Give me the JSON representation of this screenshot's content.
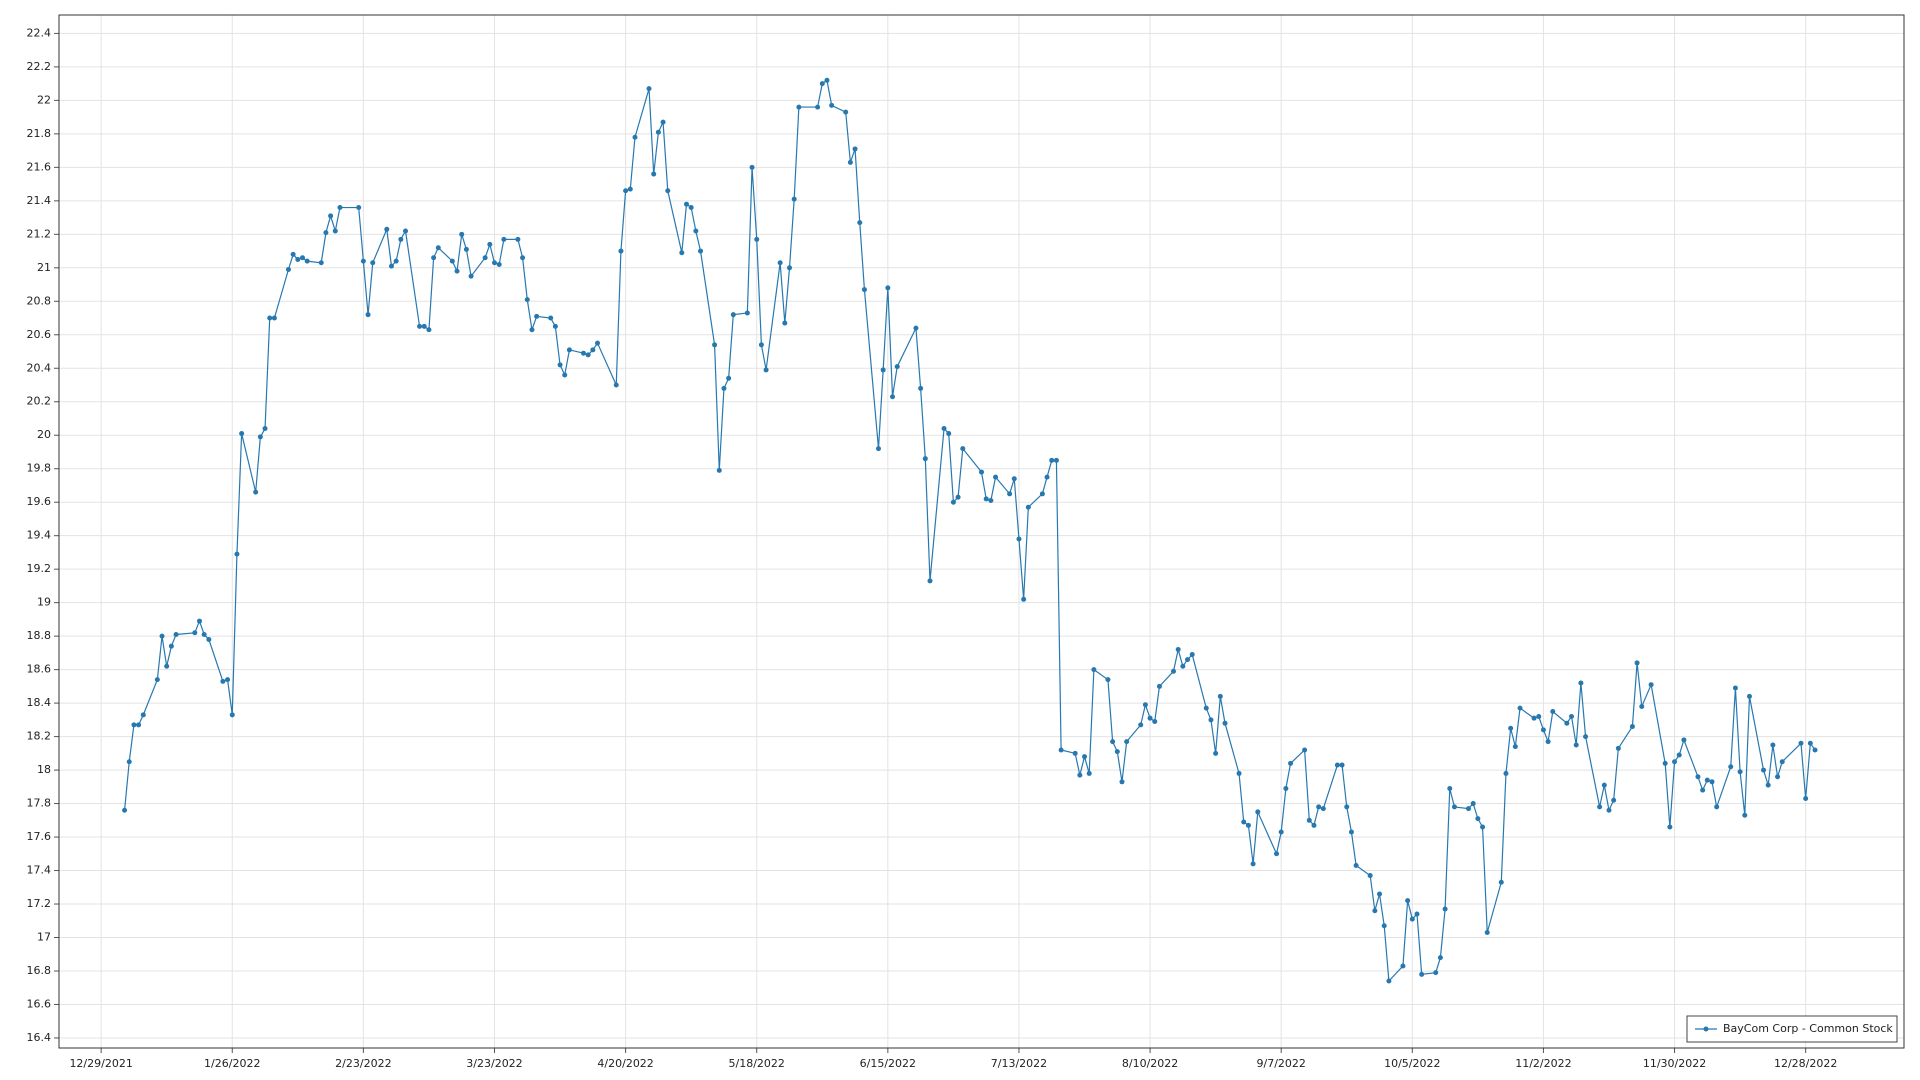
{
  "chart_data": {
    "type": "line",
    "xlim": [
      "2021-12-20",
      "2023-01-18"
    ],
    "xticks": [
      {
        "value": "2021-12-29",
        "label": "12/29/2021"
      },
      {
        "value": "2022-01-26",
        "label": "1/26/2022"
      },
      {
        "value": "2022-02-23",
        "label": "2/23/2022"
      },
      {
        "value": "2022-03-23",
        "label": "3/23/2022"
      },
      {
        "value": "2022-04-20",
        "label": "4/20/2022"
      },
      {
        "value": "2022-05-18",
        "label": "5/18/2022"
      },
      {
        "value": "2022-06-15",
        "label": "6/15/2022"
      },
      {
        "value": "2022-07-13",
        "label": "7/13/2022"
      },
      {
        "value": "2022-08-10",
        "label": "8/10/2022"
      },
      {
        "value": "2022-09-07",
        "label": "9/7/2022"
      },
      {
        "value": "2022-10-05",
        "label": "10/5/2022"
      },
      {
        "value": "2022-11-02",
        "label": "11/2/2022"
      },
      {
        "value": "2022-11-30",
        "label": "11/30/2022"
      },
      {
        "value": "2022-12-28",
        "label": "12/28/2022"
      }
    ],
    "ylim": [
      16.34,
      22.51
    ],
    "yticks": [
      16.4,
      16.6,
      16.8,
      17,
      17.2,
      17.4,
      17.6,
      17.8,
      18,
      18.2,
      18.4,
      18.6,
      18.8,
      19,
      19.2,
      19.4,
      19.6,
      19.8,
      20,
      20.2,
      20.4,
      20.6,
      20.8,
      21,
      21.2,
      21.4,
      21.6,
      21.8,
      22,
      22.2,
      22.4
    ],
    "grid": true,
    "legend": "lower right",
    "x": [
      "2022-01-03",
      "2022-01-04",
      "2022-01-05",
      "2022-01-06",
      "2022-01-07",
      "2022-01-10",
      "2022-01-11",
      "2022-01-12",
      "2022-01-13",
      "2022-01-14",
      "2022-01-18",
      "2022-01-19",
      "2022-01-20",
      "2022-01-21",
      "2022-01-24",
      "2022-01-25",
      "2022-01-26",
      "2022-01-27",
      "2022-01-28",
      "2022-01-31",
      "2022-02-01",
      "2022-02-02",
      "2022-02-03",
      "2022-02-04",
      "2022-02-07",
      "2022-02-08",
      "2022-02-09",
      "2022-02-10",
      "2022-02-11",
      "2022-02-14",
      "2022-02-15",
      "2022-02-16",
      "2022-02-17",
      "2022-02-18",
      "2022-02-22",
      "2022-02-23",
      "2022-02-24",
      "2022-02-25",
      "2022-02-28",
      "2022-03-01",
      "2022-03-02",
      "2022-03-03",
      "2022-03-04",
      "2022-03-07",
      "2022-03-08",
      "2022-03-09",
      "2022-03-10",
      "2022-03-11",
      "2022-03-14",
      "2022-03-15",
      "2022-03-16",
      "2022-03-17",
      "2022-03-18",
      "2022-03-21",
      "2022-03-22",
      "2022-03-23",
      "2022-03-24",
      "2022-03-25",
      "2022-03-28",
      "2022-03-29",
      "2022-03-30",
      "2022-03-31",
      "2022-04-01",
      "2022-04-04",
      "2022-04-05",
      "2022-04-06",
      "2022-04-07",
      "2022-04-08",
      "2022-04-11",
      "2022-04-12",
      "2022-04-13",
      "2022-04-14",
      "2022-04-18",
      "2022-04-19",
      "2022-04-20",
      "2022-04-21",
      "2022-04-22",
      "2022-04-25",
      "2022-04-26",
      "2022-04-27",
      "2022-04-28",
      "2022-04-29",
      "2022-05-02",
      "2022-05-03",
      "2022-05-04",
      "2022-05-05",
      "2022-05-06",
      "2022-05-09",
      "2022-05-10",
      "2022-05-11",
      "2022-05-12",
      "2022-05-13",
      "2022-05-16",
      "2022-05-17",
      "2022-05-18",
      "2022-05-19",
      "2022-05-20",
      "2022-05-23",
      "2022-05-24",
      "2022-05-25",
      "2022-05-26",
      "2022-05-27",
      "2022-05-31",
      "2022-06-01",
      "2022-06-02",
      "2022-06-03",
      "2022-06-06",
      "2022-06-07",
      "2022-06-08",
      "2022-06-09",
      "2022-06-10",
      "2022-06-13",
      "2022-06-14",
      "2022-06-15",
      "2022-06-16",
      "2022-06-17",
      "2022-06-21",
      "2022-06-22",
      "2022-06-23",
      "2022-06-24",
      "2022-06-27",
      "2022-06-28",
      "2022-06-29",
      "2022-06-30",
      "2022-07-01",
      "2022-07-05",
      "2022-07-06",
      "2022-07-07",
      "2022-07-08",
      "2022-07-11",
      "2022-07-12",
      "2022-07-13",
      "2022-07-14",
      "2022-07-15",
      "2022-07-18",
      "2022-07-19",
      "2022-07-20",
      "2022-07-21",
      "2022-07-22",
      "2022-07-25",
      "2022-07-26",
      "2022-07-27",
      "2022-07-28",
      "2022-07-29",
      "2022-08-01",
      "2022-08-02",
      "2022-08-03",
      "2022-08-04",
      "2022-08-05",
      "2022-08-08",
      "2022-08-09",
      "2022-08-10",
      "2022-08-11",
      "2022-08-12",
      "2022-08-15",
      "2022-08-16",
      "2022-08-17",
      "2022-08-18",
      "2022-08-19",
      "2022-08-22",
      "2022-08-23",
      "2022-08-24",
      "2022-08-25",
      "2022-08-26",
      "2022-08-29",
      "2022-08-30",
      "2022-08-31",
      "2022-09-01",
      "2022-09-02",
      "2022-09-06",
      "2022-09-07",
      "2022-09-08",
      "2022-09-09",
      "2022-09-12",
      "2022-09-13",
      "2022-09-14",
      "2022-09-15",
      "2022-09-16",
      "2022-09-19",
      "2022-09-20",
      "2022-09-21",
      "2022-09-22",
      "2022-09-23",
      "2022-09-26",
      "2022-09-27",
      "2022-09-28",
      "2022-09-29",
      "2022-09-30",
      "2022-10-03",
      "2022-10-04",
      "2022-10-05",
      "2022-10-06",
      "2022-10-07",
      "2022-10-10",
      "2022-10-11",
      "2022-10-12",
      "2022-10-13",
      "2022-10-14",
      "2022-10-17",
      "2022-10-18",
      "2022-10-19",
      "2022-10-20",
      "2022-10-21",
      "2022-10-24",
      "2022-10-25",
      "2022-10-26",
      "2022-10-27",
      "2022-10-28",
      "2022-10-31",
      "2022-11-01",
      "2022-11-02",
      "2022-11-03",
      "2022-11-04",
      "2022-11-07",
      "2022-11-08",
      "2022-11-09",
      "2022-11-10",
      "2022-11-11",
      "2022-11-14",
      "2022-11-15",
      "2022-11-16",
      "2022-11-17",
      "2022-11-18",
      "2022-11-21",
      "2022-11-22",
      "2022-11-23",
      "2022-11-25",
      "2022-11-28",
      "2022-11-29",
      "2022-11-30",
      "2022-12-01",
      "2022-12-02",
      "2022-12-05",
      "2022-12-06",
      "2022-12-07",
      "2022-12-08",
      "2022-12-09",
      "2022-12-12",
      "2022-12-13",
      "2022-12-14",
      "2022-12-15",
      "2022-12-16",
      "2022-12-19",
      "2022-12-20",
      "2022-12-21",
      "2022-12-22",
      "2022-12-23",
      "2022-12-27",
      "2022-12-28",
      "2022-12-29",
      "2022-12-30"
    ],
    "series": [
      {
        "name": "BayCom Corp - Common Stock",
        "color": "#2878b0",
        "values": [
          17.76,
          18.05,
          18.27,
          18.27,
          18.33,
          18.54,
          18.8,
          18.62,
          18.74,
          18.81,
          18.82,
          18.89,
          18.81,
          18.78,
          18.53,
          18.54,
          18.33,
          19.29,
          20.01,
          19.66,
          19.99,
          20.04,
          20.7,
          20.7,
          20.99,
          21.08,
          21.05,
          21.06,
          21.04,
          21.03,
          21.21,
          21.31,
          21.22,
          21.36,
          21.36,
          21.04,
          20.72,
          21.03,
          21.23,
          21.01,
          21.04,
          21.17,
          21.22,
          20.65,
          20.65,
          20.63,
          21.06,
          21.12,
          21.04,
          20.98,
          21.2,
          21.11,
          20.95,
          21.06,
          21.14,
          21.03,
          21.02,
          21.17,
          21.17,
          21.06,
          20.81,
          20.63,
          20.71,
          20.7,
          20.65,
          20.42,
          20.36,
          20.51,
          20.49,
          20.48,
          20.51,
          20.55,
          20.3,
          21.1,
          21.46,
          21.47,
          21.78,
          22.07,
          21.56,
          21.81,
          21.87,
          21.46,
          21.09,
          21.38,
          21.36,
          21.22,
          21.1,
          20.54,
          19.79,
          20.28,
          20.34,
          20.72,
          20.73,
          21.6,
          21.17,
          20.54,
          20.39,
          21.03,
          20.67,
          21.0,
          21.41,
          21.96,
          21.96,
          22.1,
          22.12,
          21.97,
          21.93,
          21.63,
          21.71,
          21.27,
          20.87,
          19.92,
          20.39,
          20.88,
          20.23,
          20.41,
          20.64,
          20.28,
          19.86,
          19.13,
          20.04,
          20.01,
          19.6,
          19.63,
          19.92,
          19.78,
          19.62,
          19.61,
          19.75,
          19.65,
          19.74,
          19.38,
          19.02,
          19.57,
          19.65,
          19.75,
          19.85,
          19.85,
          18.12,
          18.1,
          17.97,
          18.08,
          17.98,
          18.6,
          18.54,
          18.17,
          18.11,
          17.93,
          18.17,
          18.27,
          18.39,
          18.31,
          18.29,
          18.5,
          18.59,
          18.72,
          18.62,
          18.66,
          18.69,
          18.37,
          18.3,
          18.1,
          18.44,
          18.28,
          17.98,
          17.69,
          17.67,
          17.44,
          17.75,
          17.5,
          17.63,
          17.89,
          18.04,
          18.12,
          17.7,
          17.67,
          17.78,
          17.77,
          18.03,
          18.03,
          17.78,
          17.63,
          17.43,
          17.37,
          17.16,
          17.26,
          17.07,
          16.74,
          16.83,
          17.22,
          17.11,
          17.14,
          16.78,
          16.79,
          16.88,
          17.17,
          17.89,
          17.78,
          17.77,
          17.8,
          17.71,
          17.66,
          17.03,
          17.33,
          17.98,
          18.25,
          18.14,
          18.37,
          18.31,
          18.32,
          18.24,
          18.17,
          18.35,
          18.28,
          18.32,
          18.15,
          18.52,
          18.2,
          17.78,
          17.91,
          17.76,
          17.82,
          18.13,
          18.26,
          18.64,
          18.38,
          18.51,
          18.04,
          17.66,
          18.05,
          18.09,
          18.18,
          17.96,
          17.88,
          17.94,
          17.93,
          17.78,
          18.02,
          18.49,
          17.99,
          17.73,
          18.44,
          18.0,
          17.91,
          18.15,
          17.96,
          18.05,
          18.16,
          17.83,
          18.16,
          18.12
        ]
      }
    ]
  }
}
